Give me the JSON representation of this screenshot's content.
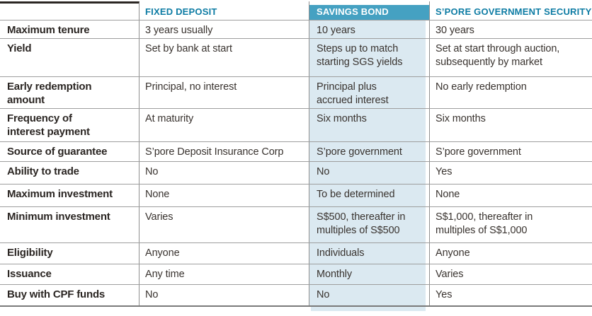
{
  "chart_data": {
    "type": "table",
    "columns": [
      "",
      "FIXED DEPOSIT",
      "SAVINGS BOND",
      "S’PORE GOVERNMENT SECURITY"
    ],
    "rows": [
      {
        "label": "Maximum tenure",
        "fixed": "3 years usually",
        "savings": "10 years",
        "sgs": "30 years"
      },
      {
        "label": "Yield",
        "fixed": "Set by bank at start",
        "savings": "Steps up to match\nstarting SGS yields",
        "sgs": "Set at start through auction,\nsubsequently by market"
      },
      {
        "label": "Early redemption\namount",
        "fixed": "Principal, no interest",
        "savings": "Principal plus\naccrued interest",
        "sgs": "No early redemption"
      },
      {
        "label": "Frequency of\ninterest payment",
        "fixed": "At maturity",
        "savings": "Six months",
        "sgs": "Six months"
      },
      {
        "label": "Source of guarantee",
        "fixed": "S’pore Deposit Insurance Corp",
        "savings": "S’pore government",
        "sgs": "S’pore government"
      },
      {
        "label": "Ability to trade",
        "fixed": "No",
        "savings": "No",
        "sgs": "Yes"
      },
      {
        "label": "Maximum investment",
        "fixed": "None",
        "savings": "To be determined",
        "sgs": "None"
      },
      {
        "label": "Minimum investment",
        "fixed": "Varies",
        "savings": "S$500, thereafter in\nmultiples of S$500",
        "sgs": "S$1,000, thereafter in\nmultiples of S$1,000"
      },
      {
        "label": "Eligibility",
        "fixed": "Anyone",
        "savings": "Individuals",
        "sgs": "Anyone"
      },
      {
        "label": "Issuance",
        "fixed": "Any time",
        "savings": "Monthly",
        "sgs": "Varies"
      },
      {
        "label": "Buy with CPF funds",
        "fixed": "No",
        "savings": "No",
        "sgs": "Yes"
      }
    ],
    "layout_hints": {
      "highlighted_column": "SAVINGS BOND",
      "grid": "horizontal row dividers and vertical column rules"
    }
  },
  "colors": {
    "header_text_teal": "#0e7ca4",
    "savings_header_bg": "#45a1c2",
    "savings_header_text": "#ffffff",
    "savings_column_bg": "#dbe9f1",
    "row_label_text": "#2b2623",
    "cell_text": "#39332f",
    "grid_line": "#9e9e9e",
    "column_rule": "#8f8f8f",
    "top_rule": "#2b2623",
    "bottom_rule": "#7a7a7a"
  }
}
